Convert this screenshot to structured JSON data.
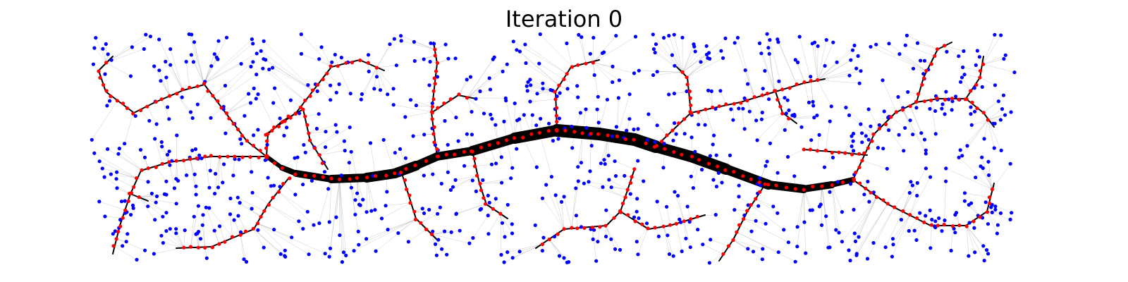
{
  "figure": {
    "title": "Iteration 0"
  },
  "legend_colors": {
    "background": "#ffffff",
    "blue_node": "#0000ff",
    "red_node": "#ff0000",
    "edge": "#000000",
    "thin_edge": "#9a9a9a"
  }
}
